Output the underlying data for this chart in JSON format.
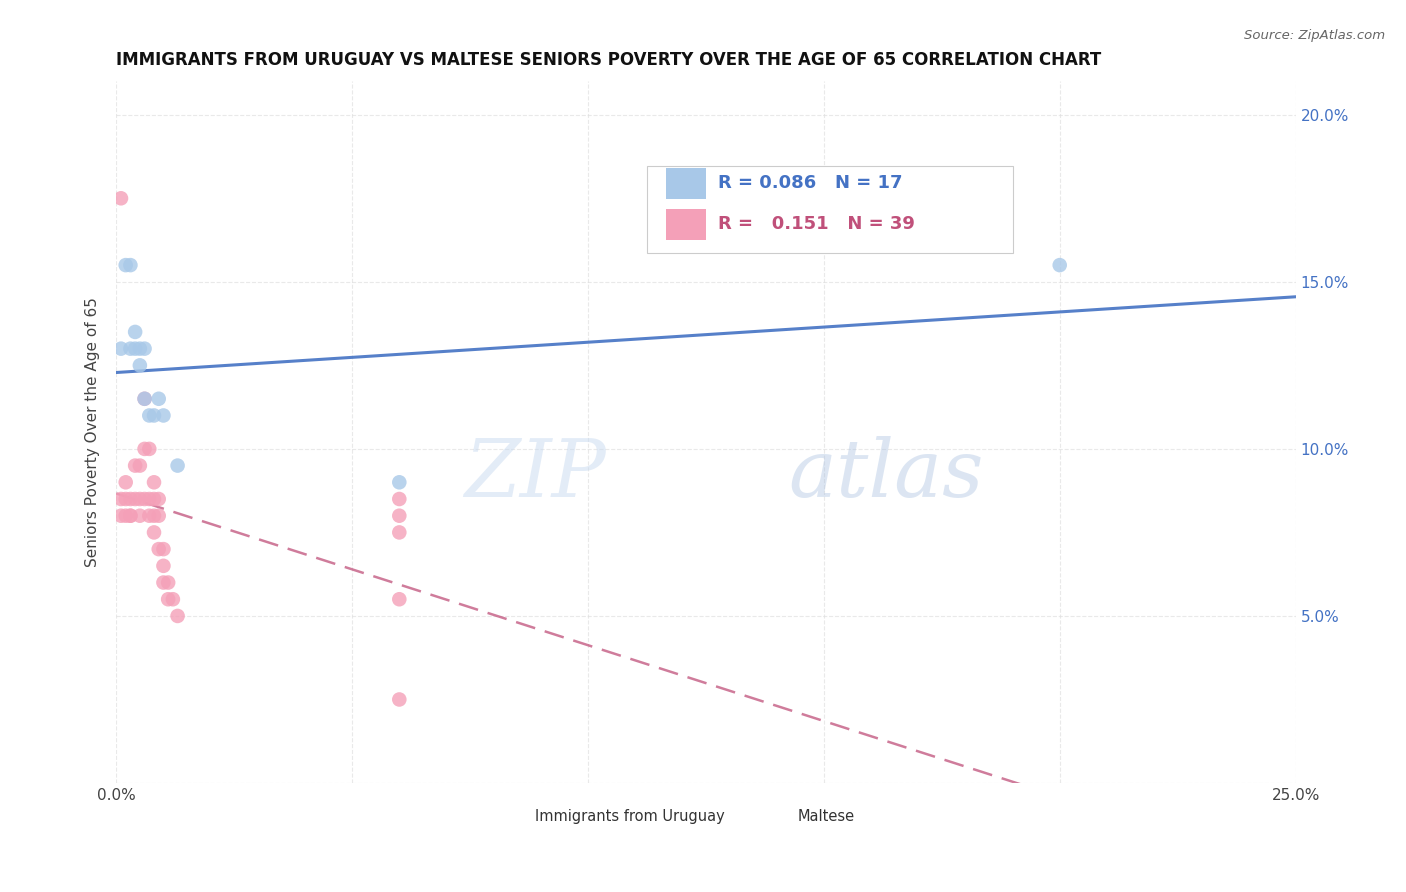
{
  "title": "IMMIGRANTS FROM URUGUAY VS MALTESE SENIORS POVERTY OVER THE AGE OF 65 CORRELATION CHART",
  "source": "Source: ZipAtlas.com",
  "ylabel": "Seniors Poverty Over the Age of 65",
  "xlim": [
    0,
    0.25
  ],
  "ylim": [
    0,
    0.21
  ],
  "legend_blue_r": "0.086",
  "legend_blue_n": "17",
  "legend_pink_r": "0.151",
  "legend_pink_n": "39",
  "watermark_zip": "ZIP",
  "watermark_atlas": "atlas",
  "blue_color": "#a8c8e8",
  "pink_color": "#f4a0b8",
  "blue_line_color": "#4472c4",
  "pink_line_color": "#c0507a",
  "grid_color": "#e0e0e0",
  "uruguay_x": [
    0.001,
    0.002,
    0.003,
    0.003,
    0.004,
    0.004,
    0.005,
    0.005,
    0.006,
    0.006,
    0.007,
    0.008,
    0.009,
    0.01,
    0.013,
    0.06,
    0.2
  ],
  "uruguay_y": [
    0.13,
    0.155,
    0.13,
    0.155,
    0.135,
    0.13,
    0.125,
    0.13,
    0.115,
    0.13,
    0.11,
    0.11,
    0.115,
    0.11,
    0.095,
    0.09,
    0.155
  ],
  "maltese_x": [
    0.001,
    0.001,
    0.001,
    0.002,
    0.002,
    0.002,
    0.003,
    0.003,
    0.003,
    0.004,
    0.004,
    0.005,
    0.005,
    0.005,
    0.006,
    0.006,
    0.006,
    0.007,
    0.007,
    0.007,
    0.008,
    0.008,
    0.008,
    0.008,
    0.009,
    0.009,
    0.009,
    0.01,
    0.01,
    0.01,
    0.011,
    0.011,
    0.012,
    0.013,
    0.06,
    0.06,
    0.06,
    0.06,
    0.06
  ],
  "maltese_y": [
    0.175,
    0.085,
    0.08,
    0.09,
    0.085,
    0.08,
    0.085,
    0.08,
    0.08,
    0.095,
    0.085,
    0.095,
    0.085,
    0.08,
    0.115,
    0.1,
    0.085,
    0.1,
    0.085,
    0.08,
    0.09,
    0.08,
    0.075,
    0.085,
    0.08,
    0.07,
    0.085,
    0.07,
    0.06,
    0.065,
    0.06,
    0.055,
    0.055,
    0.05,
    0.085,
    0.08,
    0.075,
    0.055,
    0.025
  ]
}
